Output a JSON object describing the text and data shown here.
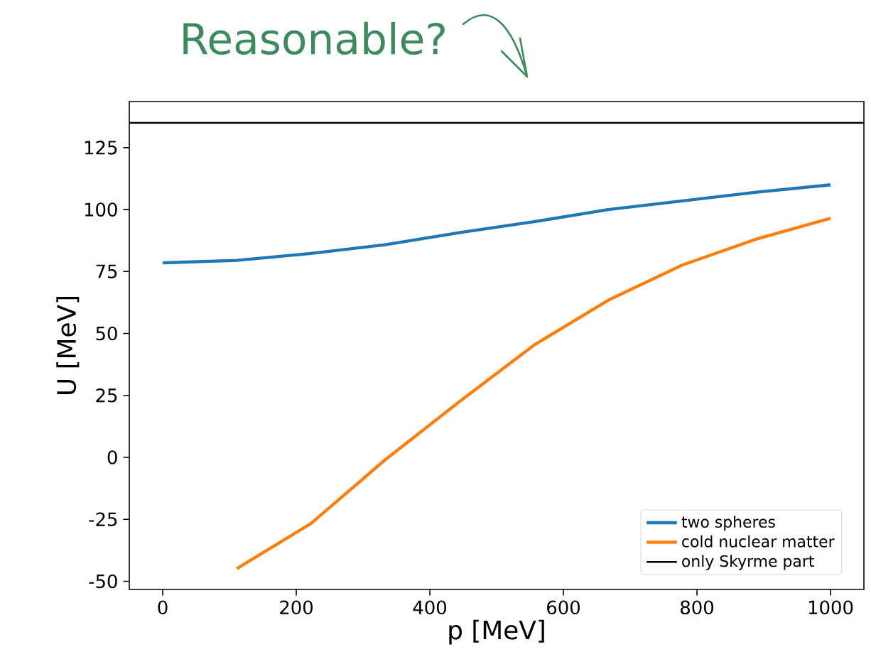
{
  "chart_data": {
    "type": "line",
    "xlabel": "p [MeV]",
    "ylabel": "U [MeV]",
    "annotations": [
      "Reasonable?"
    ],
    "series": [
      {
        "name": "two spheres",
        "color": "#1f77b4",
        "x": [
          0,
          111,
          222,
          333,
          444,
          556,
          667,
          778,
          889,
          1000
        ],
        "values": [
          78.5,
          79.5,
          82.3,
          85.8,
          90.7,
          95.1,
          100,
          103.5,
          107,
          110
        ]
      },
      {
        "name": "cold nuclear matter",
        "color": "#ff7f0e",
        "x": [
          111,
          222,
          333,
          444,
          556,
          667,
          778,
          889,
          1000
        ],
        "values": [
          -44.9,
          -26.7,
          -1,
          22.4,
          45.3,
          63.4,
          77.6,
          88.1,
          96.5
        ]
      }
    ],
    "ref_lines": [
      {
        "axis": "y",
        "value": 135,
        "label": "only Skyrme part",
        "color": "#000000"
      }
    ],
    "xlim": [
      -50,
      1050
    ],
    "ylim": [
      -53.3,
      143.6
    ],
    "xticks": [
      0,
      200,
      400,
      600,
      800,
      1000
    ],
    "yticks": [
      -50,
      -25,
      0,
      25,
      50,
      75,
      100,
      125
    ],
    "grid": false,
    "legend": "bottom right"
  }
}
